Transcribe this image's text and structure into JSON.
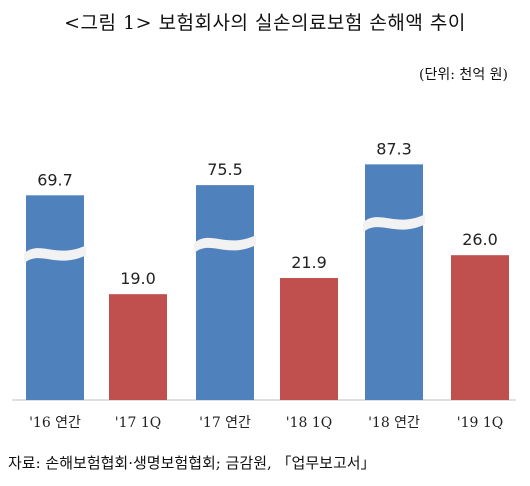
{
  "title": "<그림 1> 보험회사의 실손의료보험 손해액 추이",
  "unit": "(단위: 천억 원)",
  "source": "자료: 손해보험협회·생명보험협회; 금감원, 「업무보고서」",
  "chart_data": {
    "type": "bar",
    "categories": [
      "'16 연간",
      "'17 1Q",
      "'17 연간",
      "'18 1Q",
      "'18 연간",
      "'19 1Q"
    ],
    "values": [
      69.7,
      19.0,
      75.5,
      21.9,
      87.3,
      26.0
    ],
    "value_labels": [
      "69.7",
      "19.0",
      "75.5",
      "21.9",
      "87.3",
      "26.0"
    ],
    "axis_break_on": [
      "'16 연간",
      "'17 연간",
      "'18 연간"
    ],
    "colors": {
      "annual": "#4f81bd",
      "quarter": "#c0504d",
      "break": "#f2f2f2",
      "axis": "#bfbfbf"
    },
    "title": "",
    "xlabel": "",
    "ylabel": "",
    "legend": "none",
    "grid": false
  }
}
